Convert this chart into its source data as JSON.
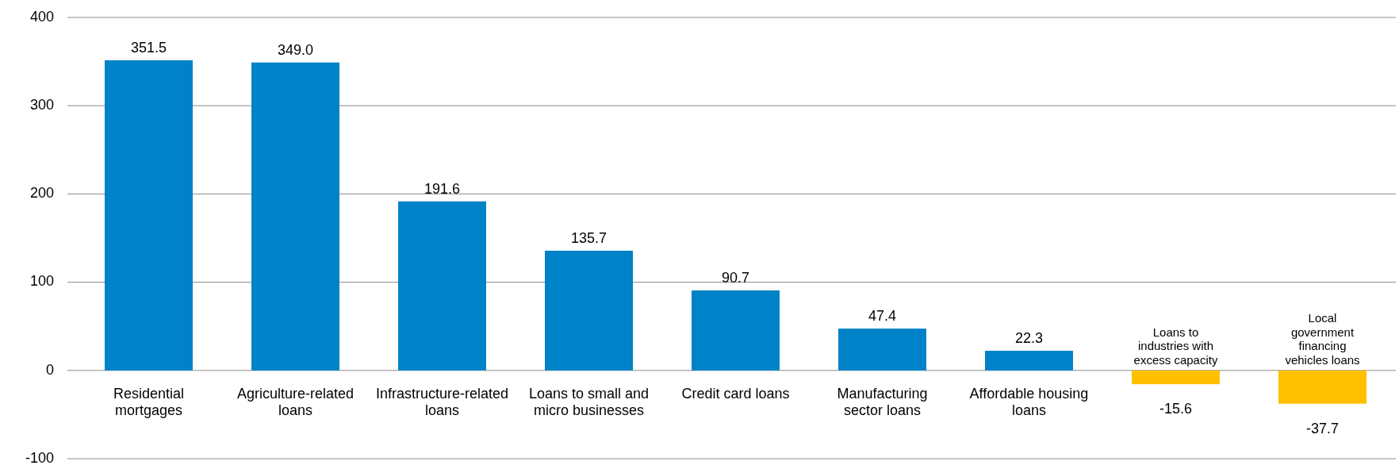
{
  "chart_data": {
    "type": "bar",
    "categories": [
      "Residential mortgages",
      "Agriculture-related loans",
      "Infrastructure-related loans",
      "Loans to small and micro businesses",
      "Credit card loans",
      "Manufacturing sector loans",
      "Affordable housing loans",
      "Loans to industries with excess capacity",
      "Local government financing vehicles loans"
    ],
    "values": [
      351.5,
      349.0,
      191.6,
      135.7,
      90.7,
      47.4,
      22.3,
      -15.6,
      -37.7
    ],
    "value_labels": [
      "351.5",
      "349.0",
      "191.6",
      "135.7",
      "90.7",
      "47.4",
      "22.3",
      "-15.6",
      "-37.7"
    ],
    "colors": [
      "#0082c8",
      "#0082c8",
      "#0082c8",
      "#0082c8",
      "#0082c8",
      "#0082c8",
      "#0082c8",
      "#ffc000",
      "#ffc000"
    ],
    "ylim": [
      -100,
      400
    ],
    "yticks": [
      -100,
      0,
      100,
      200,
      300,
      400
    ],
    "grid": "y"
  }
}
